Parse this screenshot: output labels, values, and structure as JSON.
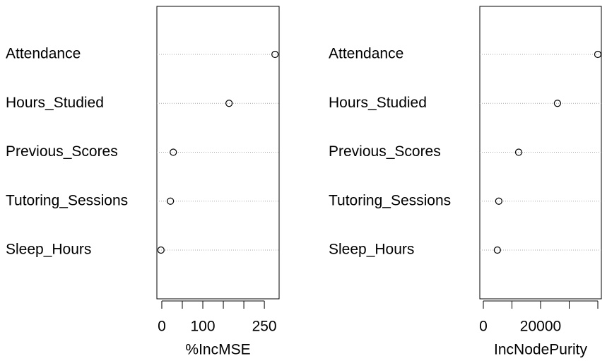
{
  "chart_data": [
    {
      "type": "dot",
      "xlabel": "%IncMSE",
      "categories": [
        "Attendance",
        "Hours_Studied",
        "Previous_Scores",
        "Tutoring_Sessions",
        "Sleep_Hours"
      ],
      "values": [
        276,
        164,
        28,
        21,
        -2
      ],
      "xlim": [
        -12,
        286
      ],
      "xticks": [
        0,
        100,
        250
      ],
      "minor_xticks": [
        50,
        150,
        200
      ]
    },
    {
      "type": "dot",
      "xlabel": "IncNodePurity",
      "categories": [
        "Attendance",
        "Hours_Studied",
        "Previous_Scores",
        "Tutoring_Sessions",
        "Sleep_Hours"
      ],
      "values": [
        40000,
        25900,
        12350,
        5400,
        4900
      ],
      "xlim": [
        -1235,
        41235
      ],
      "xticks": [
        0,
        20000
      ],
      "minor_xticks": [
        10000,
        30000,
        40000
      ]
    }
  ]
}
